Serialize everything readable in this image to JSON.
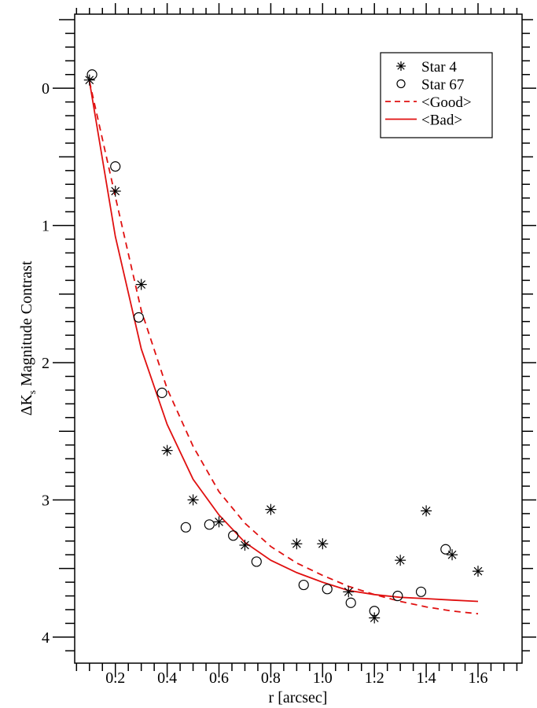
{
  "chart_data": {
    "type": "scatter",
    "title": "",
    "xlabel": "r [arcsec]",
    "ylabel_main": "ΔK",
    "ylabel_sub": "s",
    "ylabel_rest": " Magnitude Contrast",
    "xlim": [
      0.043,
      1.77
    ],
    "ylim": [
      -0.54,
      4.19
    ],
    "y_inverted": true,
    "grid": false,
    "legend_position": "top-right",
    "xticks": [
      0.2,
      0.4,
      0.6,
      0.8,
      1.0,
      1.2,
      1.4,
      1.6
    ],
    "xtick_labels": [
      "0.2",
      "0.4",
      "0.6",
      "0.8",
      "1.0",
      "1.2",
      "1.4",
      "1.6"
    ],
    "yticks": [
      0,
      1,
      2,
      3,
      4
    ],
    "ytick_labels": [
      "0",
      "1",
      "2",
      "3",
      "4"
    ],
    "series": [
      {
        "name": "Star 4",
        "kind": "asterisk",
        "color": "#000000",
        "x": [
          0.1,
          0.2,
          0.3,
          0.4,
          0.5,
          0.6,
          0.7,
          0.8,
          0.9,
          1.0,
          1.1,
          1.2,
          1.3,
          1.4,
          1.5,
          1.6
        ],
        "y": [
          -0.06,
          0.75,
          1.43,
          2.64,
          3.0,
          3.16,
          3.33,
          3.07,
          3.32,
          3.32,
          3.67,
          3.86,
          3.44,
          3.08,
          3.4,
          3.52
        ]
      },
      {
        "name": "Star 67",
        "kind": "circle",
        "color": "#000000",
        "x": [
          0.11,
          0.2,
          0.29,
          0.38,
          0.472,
          0.563,
          0.655,
          0.745,
          0.927,
          1.018,
          1.109,
          1.2,
          1.29,
          1.38,
          1.475
        ],
        "y": [
          -0.1,
          0.57,
          1.67,
          2.22,
          3.2,
          3.18,
          3.26,
          3.45,
          3.62,
          3.65,
          3.75,
          3.81,
          3.7,
          3.67,
          3.36
        ]
      },
      {
        "name": "<Good>",
        "kind": "dashed-line",
        "color": "#e01010",
        "x": [
          0.1,
          0.2,
          0.3,
          0.4,
          0.5,
          0.6,
          0.7,
          0.8,
          0.9,
          1.0,
          1.1,
          1.2,
          1.3,
          1.4,
          1.5,
          1.6
        ],
        "y": [
          -0.05,
          0.79,
          1.62,
          2.19,
          2.61,
          2.94,
          3.17,
          3.34,
          3.46,
          3.55,
          3.63,
          3.69,
          3.74,
          3.78,
          3.81,
          3.83
        ]
      },
      {
        "name": "<Bad>",
        "kind": "solid-line",
        "color": "#e01010",
        "x": [
          0.1,
          0.2,
          0.3,
          0.4,
          0.5,
          0.6,
          0.7,
          0.8,
          0.9,
          1.0,
          1.1,
          1.2,
          1.3,
          1.4,
          1.5,
          1.6
        ],
        "y": [
          -0.05,
          1.08,
          1.9,
          2.45,
          2.85,
          3.11,
          3.31,
          3.44,
          3.53,
          3.6,
          3.66,
          3.69,
          3.71,
          3.72,
          3.73,
          3.74
        ]
      }
    ]
  }
}
